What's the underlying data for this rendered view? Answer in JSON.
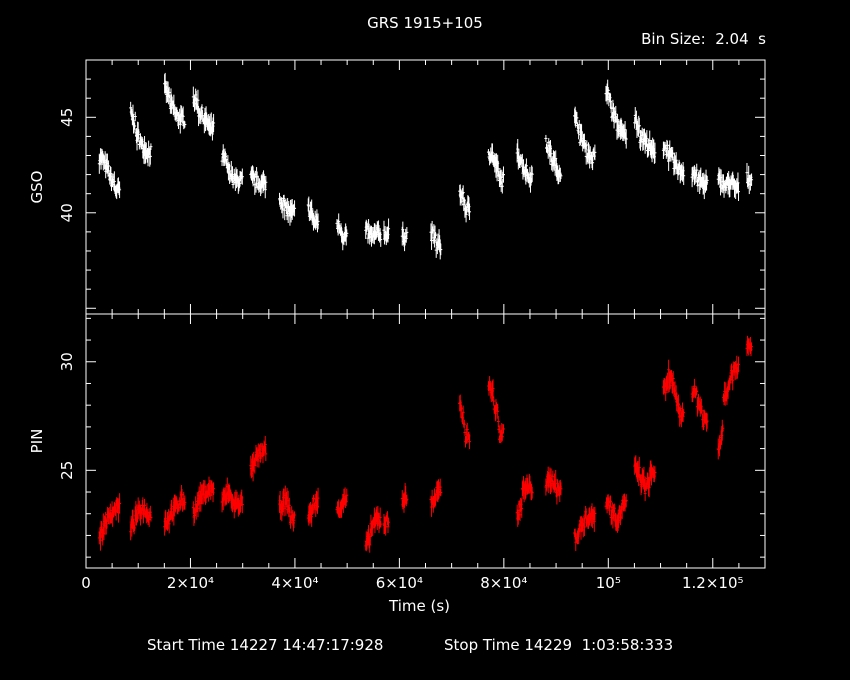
{
  "title": "GRS 1915+105",
  "bin_size_label": "Bin Size:  2.04  s",
  "footer": {
    "start": "Start Time 14227 14:47:17:928",
    "stop": "Stop Time 14229  1:03:58:333"
  },
  "colors": {
    "gso": "#ffffff",
    "pin": "#ff0000",
    "frame": "#ffffff",
    "background": "#000000"
  },
  "chart_data": [
    {
      "type": "scatter",
      "title": "GRS 1915+105",
      "ylabel": "GSO",
      "xlabel": "Time (s)",
      "xlim": [
        0,
        130000
      ],
      "ylim": [
        34.7,
        48
      ],
      "yticks": [
        40,
        45
      ],
      "color": "#ffffff",
      "error_bars": true,
      "x": [
        3000,
        4000,
        5000,
        6000,
        9000,
        10000,
        11000,
        12000,
        15500,
        16500,
        17500,
        18500,
        21000,
        22000,
        23000,
        24000,
        26500,
        27500,
        28500,
        29500,
        32000,
        33000,
        34000,
        37500,
        38500,
        39500,
        43000,
        44000,
        48500,
        49500,
        54000,
        55000,
        56000,
        57500,
        61000,
        66500,
        67500,
        72000,
        73000,
        77500,
        78500,
        79500,
        83000,
        84000,
        85000,
        88500,
        89500,
        90500,
        94000,
        95000,
        96000,
        97000,
        100000,
        101000,
        102000,
        103000,
        105500,
        106500,
        107500,
        108500,
        111000,
        112000,
        113000,
        114000,
        116500,
        117500,
        118500,
        121500,
        122500,
        123500,
        124500,
        127000
      ],
      "y": [
        42.9,
        42.5,
        41.8,
        41.2,
        45.2,
        44.1,
        43.5,
        43.2,
        46.5,
        45.7,
        45.1,
        44.9,
        46,
        45.3,
        44.9,
        44.4,
        42.9,
        42.3,
        41.7,
        41.7,
        41.8,
        41.6,
        41.5,
        40.7,
        40.2,
        40,
        40.2,
        39.5,
        39.4,
        38.8,
        39,
        38.7,
        38.9,
        38.9,
        38.8,
        38.9,
        38.3,
        41,
        40.2,
        43.2,
        42.7,
        41.7,
        43.1,
        42.4,
        41.9,
        43.6,
        42.8,
        42.2,
        44.9,
        44,
        43.3,
        42.9,
        46.4,
        45.3,
        44.6,
        44.1,
        44.9,
        44,
        43.7,
        43.2,
        43.5,
        43,
        42.5,
        42.2,
        42.1,
        41.7,
        41.5,
        41.7,
        41.4,
        41.6,
        41.3,
        41.8
      ]
    },
    {
      "type": "scatter",
      "ylabel": "PIN",
      "xlabel": "Time (s)",
      "xlim": [
        0,
        130000
      ],
      "ylim": [
        20.5,
        32.2
      ],
      "yticks": [
        25,
        30
      ],
      "color": "#ff0000",
      "error_bars": true,
      "x": [
        3000,
        4000,
        5000,
        6000,
        9000,
        10000,
        11000,
        12000,
        15500,
        16500,
        17500,
        18500,
        21000,
        22000,
        23000,
        24000,
        26500,
        27500,
        28500,
        29500,
        32000,
        33000,
        34000,
        37500,
        38500,
        39500,
        43000,
        44000,
        48500,
        49500,
        54000,
        55000,
        56000,
        57500,
        61000,
        66500,
        67500,
        72000,
        73000,
        77500,
        78500,
        79500,
        83000,
        84000,
        85000,
        88500,
        89500,
        90500,
        94000,
        95000,
        96000,
        97000,
        100000,
        101000,
        102000,
        103000,
        105500,
        106500,
        107500,
        108500,
        111000,
        112000,
        113000,
        114000,
        116500,
        117500,
        118500,
        121500,
        122500,
        123500,
        124500,
        127000
      ],
      "y": [
        22,
        22.6,
        23,
        23.3,
        22.4,
        22.9,
        23.3,
        23,
        22.6,
        23,
        23.3,
        23.6,
        23.1,
        23.7,
        24,
        24.1,
        23.6,
        24,
        23.4,
        23.5,
        25,
        25.6,
        25.9,
        23.3,
        23.7,
        22.8,
        22.9,
        23.5,
        23.2,
        23.6,
        21.5,
        22.4,
        22.8,
        22.6,
        23.7,
        23.5,
        24,
        27.9,
        26.6,
        28.9,
        28.1,
        26.7,
        22.9,
        24.1,
        24.2,
        24.4,
        24.6,
        24.1,
        21.9,
        22.4,
        22.8,
        22.9,
        23.6,
        23.1,
        22.7,
        23.4,
        25.1,
        24.6,
        24.2,
        24.9,
        28.6,
        29.4,
        28.5,
        27.6,
        28.7,
        28.2,
        27.3,
        25.9,
        28.4,
        29.2,
        29.8,
        30.6
      ]
    }
  ],
  "x_axis": {
    "tick_values": [
      0,
      20000,
      40000,
      60000,
      80000,
      100000,
      120000
    ],
    "tick_labels": [
      "0",
      "2×10⁴",
      "4×10⁴",
      "6×10⁴",
      "8×10⁴",
      "10⁵",
      "1.2×10⁵"
    ],
    "label": "Time (s)"
  }
}
